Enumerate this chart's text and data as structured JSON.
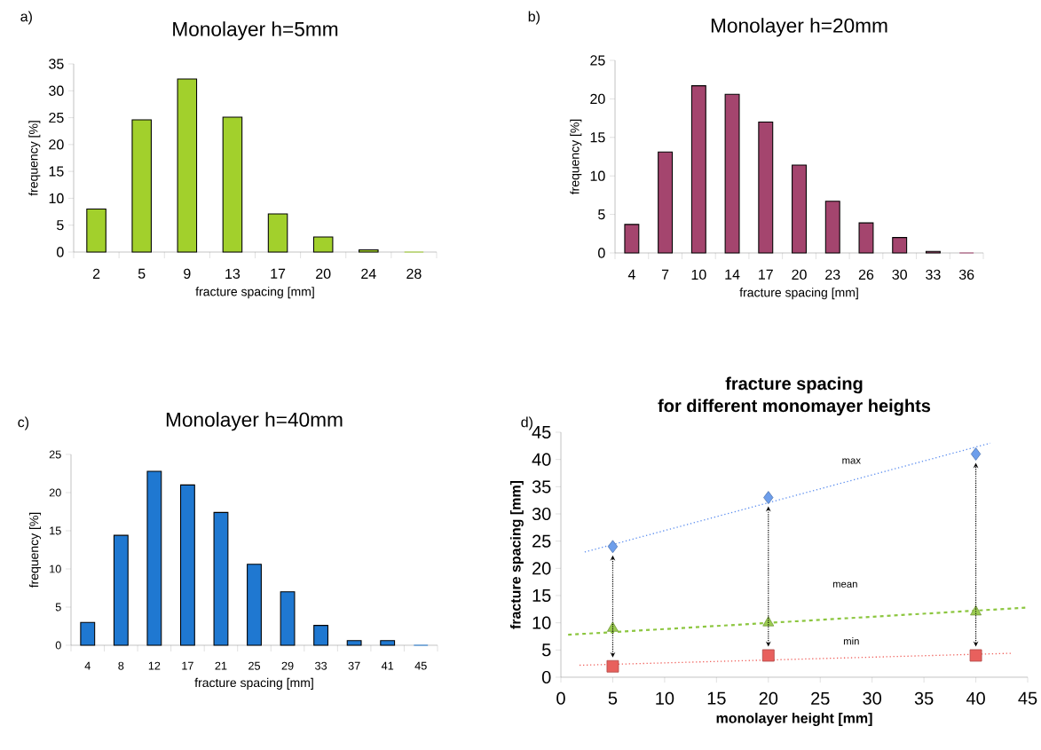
{
  "chart_data": [
    {
      "type": "bar",
      "title": "Monolayer h=5mm",
      "xlabel": "fracture spacing [mm]",
      "ylabel": "frequency [%]",
      "annotations": [
        "a)"
      ],
      "categories": [
        "2",
        "5",
        "9",
        "13",
        "17",
        "20",
        "24",
        "28"
      ],
      "values": [
        8,
        24.6,
        32.2,
        25.1,
        7.1,
        2.8,
        0.4,
        0
      ],
      "color": "#a2d02c",
      "ylim": [
        0,
        35
      ],
      "yticks": [
        0,
        5,
        10,
        15,
        20,
        25,
        30,
        35
      ]
    },
    {
      "type": "bar",
      "title": "Monolayer h=20mm",
      "xlabel": "fracture spacing [mm]",
      "ylabel": "frequency [%]",
      "annotations": [
        "b)"
      ],
      "categories": [
        "4",
        "7",
        "10",
        "14",
        "17",
        "20",
        "23",
        "26",
        "30",
        "33",
        "36"
      ],
      "values": [
        3.7,
        13.1,
        21.7,
        20.6,
        17.0,
        11.4,
        6.7,
        3.9,
        2.0,
        0.2,
        0
      ],
      "color": "#a4456e",
      "ylim": [
        0,
        25
      ],
      "yticks": [
        0,
        5,
        10,
        15,
        20,
        25
      ]
    },
    {
      "type": "bar",
      "title": "Monolayer h=40mm",
      "xlabel": "fracture spacing [mm]",
      "ylabel": "frequency [%]",
      "annotations": [
        "c)"
      ],
      "categories": [
        "4",
        "8",
        "12",
        "17",
        "21",
        "25",
        "29",
        "33",
        "37",
        "41",
        "45"
      ],
      "values": [
        3.0,
        14.4,
        22.8,
        21.0,
        17.4,
        10.6,
        7.0,
        2.6,
        0.6,
        0.6,
        0
      ],
      "color": "#1f78d1",
      "ylim": [
        0,
        25
      ],
      "yticks": [
        0,
        5,
        10,
        15,
        20,
        25
      ]
    },
    {
      "type": "scatter",
      "title": "fracture spacing",
      "subtitle": "for different monomayer heights",
      "xlabel": "monolayer height [mm]",
      "ylabel": "fracture spacing [mm]",
      "annotations": [
        "d)"
      ],
      "x": [
        5,
        20,
        40
      ],
      "series": [
        {
          "type": "scatter",
          "color": "#6d9eeb",
          "marker": "diamond",
          "values": [
            24,
            33,
            41
          ]
        },
        {
          "type": "scatter",
          "color": "#9bcc50",
          "marker": "triangle",
          "values": [
            9,
            10,
            12
          ]
        },
        {
          "type": "scatter",
          "color": "#e8605d",
          "marker": "square",
          "values": [
            2,
            4,
            4
          ]
        },
        {
          "type": "line",
          "name": "max",
          "color": "#5b8def",
          "line_style": "dotted",
          "x": [
            2.3,
            41.4
          ],
          "values": [
            23.0,
            43.0
          ]
        },
        {
          "type": "line",
          "name": "mean",
          "color": "#8cc63f",
          "line_style": "dashed",
          "x": [
            0.7,
            45
          ],
          "values": [
            7.8,
            12.8
          ]
        },
        {
          "type": "line",
          "name": "min",
          "color": "#f0625d",
          "line_style": "dotted",
          "x": [
            1.8,
            43.5
          ],
          "values": [
            2.2,
            4.4
          ]
        }
      ],
      "xlim": [
        0,
        45
      ],
      "ylim": [
        0,
        45
      ],
      "xticks": [
        0,
        5,
        10,
        15,
        20,
        25,
        30,
        35,
        40,
        45
      ],
      "yticks": [
        0,
        5,
        10,
        15,
        20,
        25,
        30,
        35,
        40,
        45
      ]
    }
  ]
}
